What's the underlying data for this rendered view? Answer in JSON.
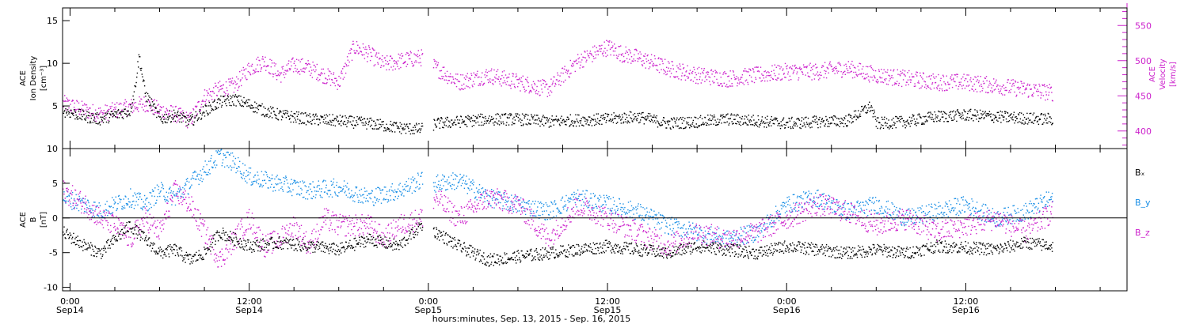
{
  "colors": {
    "axis": "#000000",
    "density": "#000000",
    "velocity": "#cc22cc",
    "bx": "#000000",
    "by": "#1a8fe6",
    "bz": "#cc22cc"
  },
  "x_axis": {
    "title": "hours:minutes, Sep. 13, 2015 - Sep. 16, 2015",
    "range_hours": [
      -0.5,
      70.8
    ],
    "ticks": [
      {
        "hours": 0,
        "time": "0:00",
        "date": "Sep14"
      },
      {
        "hours": 12,
        "time": "12:00",
        "date": "Sep14"
      },
      {
        "hours": 24,
        "time": "0:00",
        "date": "Sep15"
      },
      {
        "hours": 36,
        "time": "12:00",
        "date": "Sep15"
      },
      {
        "hours": 48,
        "time": "0:00",
        "date": "Sep16"
      },
      {
        "hours": 60,
        "time": "12:00",
        "date": "Sep16"
      }
    ]
  },
  "chart_data": [
    {
      "type": "scatter",
      "panel": "top",
      "left_axis": {
        "label_lines": [
          "ACE",
          "Ion Density",
          "[cm⁻³]"
        ],
        "ylim": [
          0,
          16.5
        ],
        "ticks": [
          5,
          10,
          15
        ],
        "tick_labels": [
          "5",
          "10",
          "15"
        ]
      },
      "right_axis": {
        "label_lines": [
          "ACE",
          "Velocity",
          "[km/s]"
        ],
        "ylim": [
          375,
          575
        ],
        "ticks": [
          400,
          450,
          500,
          550
        ],
        "tick_labels": [
          "400",
          "450",
          "500",
          "550"
        ]
      },
      "series": [
        {
          "axis": "left",
          "x_hours": [
            -0.5,
            1,
            2,
            3,
            4,
            4.3,
            4.6,
            5,
            6,
            7,
            8,
            9,
            10,
            11,
            12,
            13,
            14,
            16,
            18,
            20,
            22,
            23.5,
            24.5,
            26,
            28,
            30,
            32,
            34,
            36,
            38,
            40,
            42,
            44,
            46,
            48,
            50,
            52,
            53.6,
            54,
            56,
            58,
            60,
            62,
            64,
            65.8
          ],
          "values": [
            4.5,
            3.8,
            3.5,
            4,
            4.5,
            7,
            11,
            6.5,
            3.5,
            4,
            3.2,
            4.5,
            5.5,
            5.8,
            5.2,
            4.5,
            4,
            3.5,
            3.3,
            3,
            2.5,
            2.3,
            3,
            3.2,
            3.5,
            3.5,
            3.2,
            3.4,
            3.5,
            3.8,
            3,
            3.2,
            3.5,
            3.3,
            3,
            3.2,
            3.3,
            5,
            3,
            3.2,
            3.8,
            4,
            3.8,
            3.6,
            3.5
          ]
        },
        {
          "axis": "right",
          "x_hours": [
            -0.5,
            1,
            2,
            3,
            4,
            5,
            6,
            7,
            8,
            9,
            10,
            11,
            12,
            13,
            14,
            15,
            16,
            17,
            18,
            19,
            20,
            21,
            22,
            23.5,
            24.5,
            26,
            28,
            30,
            32,
            34,
            35,
            36,
            37,
            38,
            40,
            42,
            44,
            46,
            48,
            50,
            52,
            54,
            56,
            58,
            60,
            62,
            64,
            65.8
          ],
          "values": [
            440,
            430,
            425,
            430,
            435,
            440,
            430,
            425,
            415,
            450,
            460,
            465,
            490,
            500,
            480,
            495,
            490,
            480,
            470,
            520,
            510,
            495,
            500,
            505,
            490,
            470,
            480,
            470,
            460,
            500,
            510,
            520,
            510,
            505,
            490,
            480,
            475,
            480,
            485,
            485,
            490,
            480,
            475,
            470,
            470,
            465,
            460,
            455
          ]
        }
      ]
    },
    {
      "type": "scatter",
      "panel": "bottom",
      "left_axis": {
        "label_lines": [
          "ACE",
          "B",
          "[nT]"
        ],
        "ylim": [
          -10.5,
          10
        ],
        "ticks": [
          -10,
          -5,
          0,
          5,
          10
        ],
        "tick_labels": [
          "-10",
          "-5",
          "0",
          "5",
          "10"
        ]
      },
      "zero_line": true,
      "series": [
        {
          "name": "Bₓ",
          "x_hours": [
            -0.5,
            1,
            2,
            3,
            4,
            5,
            6,
            7,
            8,
            9,
            10,
            12,
            14,
            16,
            18,
            20,
            22,
            23.5,
            24.5,
            26,
            28,
            30,
            32,
            34,
            36,
            38,
            40,
            42,
            44,
            46,
            48,
            50,
            52,
            54,
            56,
            58,
            60,
            62,
            64,
            65.8
          ],
          "values": [
            -2,
            -4,
            -5,
            -3,
            -1,
            -3,
            -5,
            -4.5,
            -6,
            -5,
            -2,
            -4,
            -3.5,
            -4,
            -4.5,
            -3,
            -4,
            -1,
            -2,
            -4,
            -6,
            -5.5,
            -5,
            -4.5,
            -4,
            -4.5,
            -5,
            -4,
            -4.5,
            -5,
            -4,
            -4.5,
            -5,
            -4.5,
            -5,
            -4,
            -4.2,
            -4.5,
            -3.5,
            -4
          ]
        },
        {
          "name": "B_y",
          "x_hours": [
            -0.5,
            1,
            2,
            3,
            4,
            5,
            6,
            7,
            8,
            9,
            10,
            11,
            12,
            14,
            16,
            18,
            20,
            22,
            23.5,
            24.5,
            26,
            28,
            30,
            32,
            34,
            36,
            38,
            40,
            42,
            44,
            46,
            48,
            50,
            52,
            54,
            56,
            58,
            60,
            62,
            64,
            65.8
          ],
          "values": [
            3,
            2,
            1,
            2,
            3,
            2,
            4,
            3,
            5,
            7,
            9,
            8,
            6,
            5,
            4,
            4.5,
            3,
            4,
            5.5,
            5,
            5.5,
            3,
            2,
            1,
            3,
            2,
            1,
            -1,
            -2,
            -3,
            -2,
            2,
            3,
            1,
            2,
            0,
            1,
            2,
            0,
            1,
            3
          ]
        },
        {
          "name": "B_z",
          "x_hours": [
            -0.5,
            1,
            2,
            3,
            4,
            5,
            6,
            7,
            8,
            9,
            10,
            11,
            12,
            13,
            14,
            15,
            16,
            17,
            18,
            19,
            20,
            21,
            22,
            23.5,
            24.5,
            26,
            28,
            30,
            32,
            34,
            36,
            38,
            40,
            42,
            44,
            46,
            48,
            50,
            52,
            54,
            56,
            58,
            60,
            62,
            64,
            65.8
          ],
          "values": [
            4,
            2,
            0,
            -1,
            -3,
            0,
            -2,
            4,
            2,
            -2,
            -6,
            -3,
            0,
            -4,
            -3,
            -1,
            -4,
            0,
            -1,
            -1,
            -1,
            -3,
            -1,
            0,
            3,
            0,
            3,
            2,
            -3,
            2,
            0,
            -2,
            -4,
            -2,
            -3,
            -2,
            0,
            2,
            1,
            -1,
            0,
            -2,
            -1,
            0,
            -2,
            1
          ]
        }
      ]
    }
  ]
}
